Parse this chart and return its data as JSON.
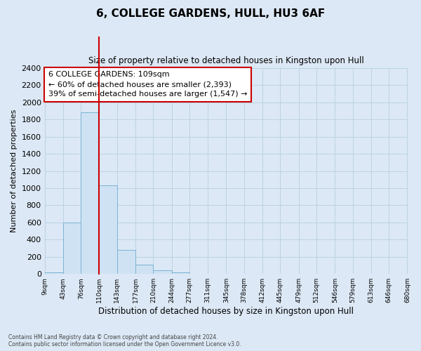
{
  "title": "6, COLLEGE GARDENS, HULL, HU3 6AF",
  "subtitle": "Size of property relative to detached houses in Kingston upon Hull",
  "xlabel": "Distribution of detached houses by size in Kingston upon Hull",
  "ylabel": "Number of detached properties",
  "bar_edges": [
    9,
    43,
    76,
    110,
    143,
    177,
    210,
    244,
    277,
    311,
    345,
    378,
    412,
    445,
    479,
    512,
    546,
    579,
    613,
    646,
    680
  ],
  "bar_heights": [
    20,
    600,
    1880,
    1030,
    280,
    110,
    45,
    20,
    0,
    0,
    0,
    0,
    0,
    0,
    0,
    0,
    0,
    0,
    0,
    0
  ],
  "bar_color": "#cfe2f3",
  "bar_edgecolor": "#7ab3d4",
  "property_line_x": 110,
  "property_line_color": "#cc0000",
  "annotation_title": "6 COLLEGE GARDENS: 109sqm",
  "annotation_line1": "← 60% of detached houses are smaller (2,393)",
  "annotation_line2": "39% of semi-detached houses are larger (1,547) →",
  "annotation_box_color": "#ffffff",
  "annotation_box_edgecolor": "#cc0000",
  "ylim": [
    0,
    2400
  ],
  "yticks": [
    0,
    200,
    400,
    600,
    800,
    1000,
    1200,
    1400,
    1600,
    1800,
    2000,
    2200,
    2400
  ],
  "tick_labels": [
    "9sqm",
    "43sqm",
    "76sqm",
    "110sqm",
    "143sqm",
    "177sqm",
    "210sqm",
    "244sqm",
    "277sqm",
    "311sqm",
    "345sqm",
    "378sqm",
    "412sqm",
    "445sqm",
    "479sqm",
    "512sqm",
    "546sqm",
    "579sqm",
    "613sqm",
    "646sqm",
    "680sqm"
  ],
  "footer_line1": "Contains HM Land Registry data © Crown copyright and database right 2024.",
  "footer_line2": "Contains public sector information licensed under the Open Government Licence v3.0.",
  "background_color": "#dce8f5",
  "plot_bg_color": "#dce8f5",
  "grid_color": "#b8cfe0"
}
